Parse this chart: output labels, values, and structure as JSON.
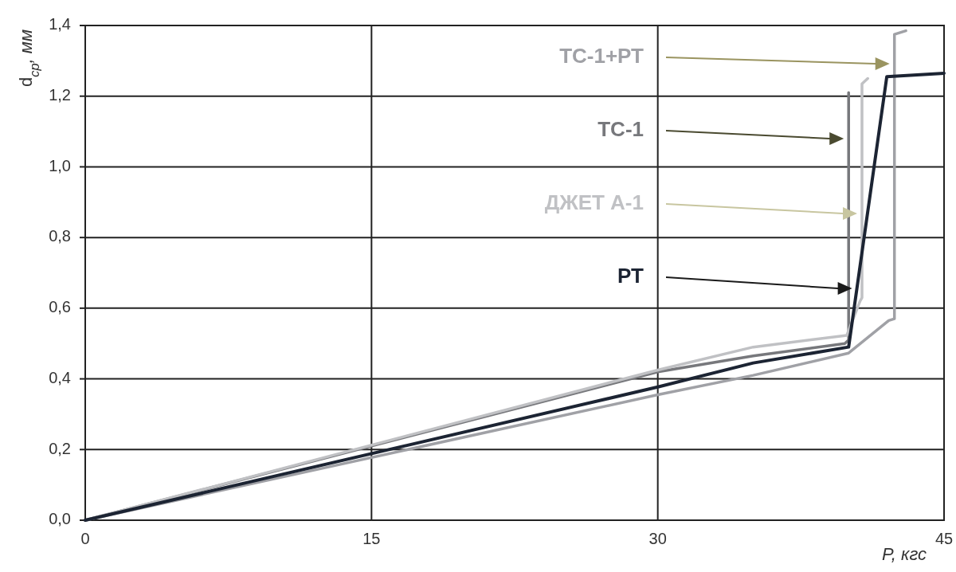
{
  "chart_data": {
    "type": "line",
    "xlabel": "P, кгс",
    "ylabel": "d$_{ср}$, мм",
    "xlim": [
      0,
      45
    ],
    "xticks": [
      0,
      15,
      30,
      45
    ],
    "ylim": [
      0,
      1.4
    ],
    "yticks": [
      {
        "value": 0,
        "label": "0,0"
      },
      {
        "value": 0.2,
        "label": "0,2"
      },
      {
        "value": 0.4,
        "label": "0,4"
      },
      {
        "value": 0.6,
        "label": "0,6"
      },
      {
        "value": 0.8,
        "label": "0,8"
      },
      {
        "value": 1.0,
        "label": "1,0"
      },
      {
        "value": 1.2,
        "label": "1,2"
      },
      {
        "value": 1.4,
        "label": "1,4"
      }
    ],
    "grid": true,
    "legend": "top right",
    "marker": "none",
    "line_style": "solid",
    "series": [
      {
        "name": "ТС-1+РТ",
        "color": "#a0a1a6",
        "x": [
          0,
          30,
          35,
          40,
          42.1,
          42.4,
          42.4,
          43
        ],
        "values": [
          0,
          0.355,
          0.41,
          0.473,
          0.565,
          0.57,
          1.375,
          1.385
        ]
      },
      {
        "name": "ТС-1",
        "color": "#77787c",
        "x": [
          0,
          30,
          35,
          39.8,
          40,
          40
        ],
        "values": [
          0,
          0.42,
          0.465,
          0.5,
          0.51,
          1.21
        ]
      },
      {
        "name": "ДЖЕТ А-1",
        "color": "#c0c1c4",
        "x": [
          0,
          30,
          35,
          39.9,
          40.6,
          40.7,
          40.7,
          41
        ],
        "values": [
          0,
          0.425,
          0.49,
          0.523,
          0.62,
          0.63,
          1.235,
          1.25
        ]
      },
      {
        "name": "РТ",
        "color": "#1c2433",
        "x": [
          0,
          30,
          35,
          40,
          42,
          45
        ],
        "values": [
          0,
          0.377,
          0.445,
          0.49,
          1.255,
          1.265
        ]
      }
    ]
  }
}
